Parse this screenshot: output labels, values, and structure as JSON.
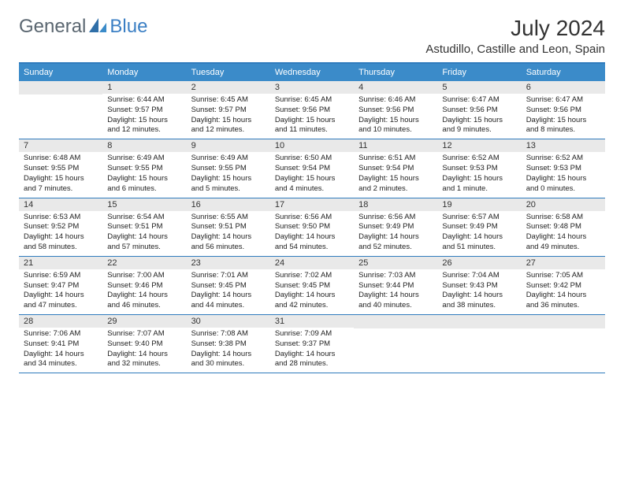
{
  "logo": {
    "general": "General",
    "blue": "Blue"
  },
  "title": "July 2024",
  "location": "Astudillo, Castille and Leon, Spain",
  "colors": {
    "header_bg": "#3b8bc9",
    "border": "#2f7bbd",
    "daynum_bg": "#e9e9e9",
    "logo_gray": "#5a6670",
    "logo_blue": "#3b7fc4",
    "text": "#222222",
    "bg": "#ffffff"
  },
  "weekdays": [
    "Sunday",
    "Monday",
    "Tuesday",
    "Wednesday",
    "Thursday",
    "Friday",
    "Saturday"
  ],
  "weeks": [
    [
      {
        "n": "",
        "sunrise": "",
        "sunset": "",
        "daylight": ""
      },
      {
        "n": "1",
        "sunrise": "Sunrise: 6:44 AM",
        "sunset": "Sunset: 9:57 PM",
        "daylight": "Daylight: 15 hours and 12 minutes."
      },
      {
        "n": "2",
        "sunrise": "Sunrise: 6:45 AM",
        "sunset": "Sunset: 9:57 PM",
        "daylight": "Daylight: 15 hours and 12 minutes."
      },
      {
        "n": "3",
        "sunrise": "Sunrise: 6:45 AM",
        "sunset": "Sunset: 9:56 PM",
        "daylight": "Daylight: 15 hours and 11 minutes."
      },
      {
        "n": "4",
        "sunrise": "Sunrise: 6:46 AM",
        "sunset": "Sunset: 9:56 PM",
        "daylight": "Daylight: 15 hours and 10 minutes."
      },
      {
        "n": "5",
        "sunrise": "Sunrise: 6:47 AM",
        "sunset": "Sunset: 9:56 PM",
        "daylight": "Daylight: 15 hours and 9 minutes."
      },
      {
        "n": "6",
        "sunrise": "Sunrise: 6:47 AM",
        "sunset": "Sunset: 9:56 PM",
        "daylight": "Daylight: 15 hours and 8 minutes."
      }
    ],
    [
      {
        "n": "7",
        "sunrise": "Sunrise: 6:48 AM",
        "sunset": "Sunset: 9:55 PM",
        "daylight": "Daylight: 15 hours and 7 minutes."
      },
      {
        "n": "8",
        "sunrise": "Sunrise: 6:49 AM",
        "sunset": "Sunset: 9:55 PM",
        "daylight": "Daylight: 15 hours and 6 minutes."
      },
      {
        "n": "9",
        "sunrise": "Sunrise: 6:49 AM",
        "sunset": "Sunset: 9:55 PM",
        "daylight": "Daylight: 15 hours and 5 minutes."
      },
      {
        "n": "10",
        "sunrise": "Sunrise: 6:50 AM",
        "sunset": "Sunset: 9:54 PM",
        "daylight": "Daylight: 15 hours and 4 minutes."
      },
      {
        "n": "11",
        "sunrise": "Sunrise: 6:51 AM",
        "sunset": "Sunset: 9:54 PM",
        "daylight": "Daylight: 15 hours and 2 minutes."
      },
      {
        "n": "12",
        "sunrise": "Sunrise: 6:52 AM",
        "sunset": "Sunset: 9:53 PM",
        "daylight": "Daylight: 15 hours and 1 minute."
      },
      {
        "n": "13",
        "sunrise": "Sunrise: 6:52 AM",
        "sunset": "Sunset: 9:53 PM",
        "daylight": "Daylight: 15 hours and 0 minutes."
      }
    ],
    [
      {
        "n": "14",
        "sunrise": "Sunrise: 6:53 AM",
        "sunset": "Sunset: 9:52 PM",
        "daylight": "Daylight: 14 hours and 58 minutes."
      },
      {
        "n": "15",
        "sunrise": "Sunrise: 6:54 AM",
        "sunset": "Sunset: 9:51 PM",
        "daylight": "Daylight: 14 hours and 57 minutes."
      },
      {
        "n": "16",
        "sunrise": "Sunrise: 6:55 AM",
        "sunset": "Sunset: 9:51 PM",
        "daylight": "Daylight: 14 hours and 56 minutes."
      },
      {
        "n": "17",
        "sunrise": "Sunrise: 6:56 AM",
        "sunset": "Sunset: 9:50 PM",
        "daylight": "Daylight: 14 hours and 54 minutes."
      },
      {
        "n": "18",
        "sunrise": "Sunrise: 6:56 AM",
        "sunset": "Sunset: 9:49 PM",
        "daylight": "Daylight: 14 hours and 52 minutes."
      },
      {
        "n": "19",
        "sunrise": "Sunrise: 6:57 AM",
        "sunset": "Sunset: 9:49 PM",
        "daylight": "Daylight: 14 hours and 51 minutes."
      },
      {
        "n": "20",
        "sunrise": "Sunrise: 6:58 AM",
        "sunset": "Sunset: 9:48 PM",
        "daylight": "Daylight: 14 hours and 49 minutes."
      }
    ],
    [
      {
        "n": "21",
        "sunrise": "Sunrise: 6:59 AM",
        "sunset": "Sunset: 9:47 PM",
        "daylight": "Daylight: 14 hours and 47 minutes."
      },
      {
        "n": "22",
        "sunrise": "Sunrise: 7:00 AM",
        "sunset": "Sunset: 9:46 PM",
        "daylight": "Daylight: 14 hours and 46 minutes."
      },
      {
        "n": "23",
        "sunrise": "Sunrise: 7:01 AM",
        "sunset": "Sunset: 9:45 PM",
        "daylight": "Daylight: 14 hours and 44 minutes."
      },
      {
        "n": "24",
        "sunrise": "Sunrise: 7:02 AM",
        "sunset": "Sunset: 9:45 PM",
        "daylight": "Daylight: 14 hours and 42 minutes."
      },
      {
        "n": "25",
        "sunrise": "Sunrise: 7:03 AM",
        "sunset": "Sunset: 9:44 PM",
        "daylight": "Daylight: 14 hours and 40 minutes."
      },
      {
        "n": "26",
        "sunrise": "Sunrise: 7:04 AM",
        "sunset": "Sunset: 9:43 PM",
        "daylight": "Daylight: 14 hours and 38 minutes."
      },
      {
        "n": "27",
        "sunrise": "Sunrise: 7:05 AM",
        "sunset": "Sunset: 9:42 PM",
        "daylight": "Daylight: 14 hours and 36 minutes."
      }
    ],
    [
      {
        "n": "28",
        "sunrise": "Sunrise: 7:06 AM",
        "sunset": "Sunset: 9:41 PM",
        "daylight": "Daylight: 14 hours and 34 minutes."
      },
      {
        "n": "29",
        "sunrise": "Sunrise: 7:07 AM",
        "sunset": "Sunset: 9:40 PM",
        "daylight": "Daylight: 14 hours and 32 minutes."
      },
      {
        "n": "30",
        "sunrise": "Sunrise: 7:08 AM",
        "sunset": "Sunset: 9:38 PM",
        "daylight": "Daylight: 14 hours and 30 minutes."
      },
      {
        "n": "31",
        "sunrise": "Sunrise: 7:09 AM",
        "sunset": "Sunset: 9:37 PM",
        "daylight": "Daylight: 14 hours and 28 minutes."
      },
      {
        "n": "",
        "sunrise": "",
        "sunset": "",
        "daylight": ""
      },
      {
        "n": "",
        "sunrise": "",
        "sunset": "",
        "daylight": ""
      },
      {
        "n": "",
        "sunrise": "",
        "sunset": "",
        "daylight": ""
      }
    ]
  ]
}
